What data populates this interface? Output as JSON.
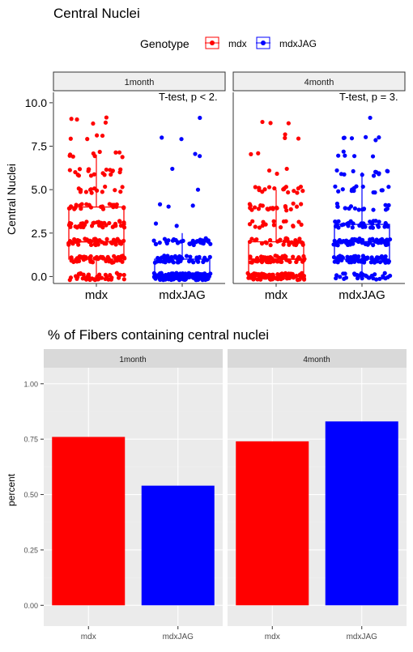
{
  "colors": {
    "mdx": "#ff0000",
    "mdxJAG": "#0000ff",
    "strip_fill": "#d9d9d9",
    "panel_bg": "#ebebeb"
  },
  "chart_data": [
    {
      "type": "box",
      "title": "Central Nuclei",
      "legend": {
        "title": "Genotype",
        "position": "top",
        "entries": [
          "mdx",
          "mdxJAG"
        ]
      },
      "facets": [
        "1month",
        "4month"
      ],
      "categories": [
        "mdx",
        "mdxJAG"
      ],
      "ylabel": "Central Nuclei",
      "xlabel": "",
      "ylim": [
        -0.4,
        10.6
      ],
      "yticks": [
        "0.0",
        "2.5",
        "5.0",
        "7.5",
        "10.0"
      ],
      "annotations": [
        "T-test, p < 2.",
        "T-test, p = 3."
      ],
      "grid": false,
      "boxes": {
        "1month": {
          "mdx": {
            "q1": 1.0,
            "median": 2.0,
            "q3": 4.0,
            "whisker_low": 0.0,
            "whisker_high": 7.0
          },
          "mdxJAG": {
            "q1": 0.0,
            "median": 0.0,
            "q3": 1.0,
            "whisker_low": 0.0,
            "whisker_high": 2.5
          }
        },
        "4month": {
          "mdx": {
            "q1": 0.0,
            "median": 1.0,
            "q3": 2.0,
            "whisker_low": 0.0,
            "whisker_high": 5.0
          },
          "mdxJAG": {
            "q1": 1.0,
            "median": 2.0,
            "q3": 3.0,
            "whisker_low": 0.0,
            "whisker_high": 6.0
          }
        }
      }
    },
    {
      "type": "bar",
      "title": "% of Fibers containing central nuclei",
      "facets": [
        "1month",
        "4month"
      ],
      "categories": [
        "mdx",
        "mdxJAG"
      ],
      "ylabel": "percent",
      "xlabel": "",
      "ylim": [
        0,
        1.05
      ],
      "yticks": [
        "0.00",
        "0.25",
        "0.50",
        "0.75",
        "1.00"
      ],
      "grid": true,
      "values": {
        "1month": {
          "mdx": 0.76,
          "mdxJAG": 0.54
        },
        "4month": {
          "mdx": 0.74,
          "mdxJAG": 0.83
        }
      }
    }
  ]
}
